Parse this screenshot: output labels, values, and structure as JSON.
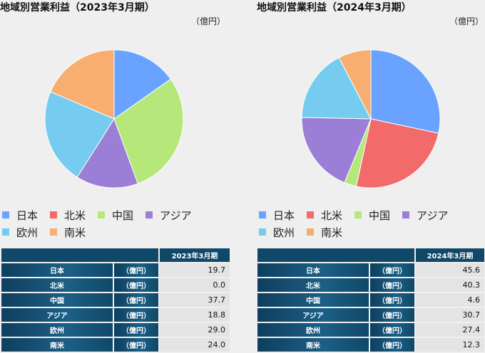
{
  "unit_label": "（億円）",
  "colors": {
    "japan": "#6aa3ff",
    "north_america": "#f26a6a",
    "china": "#b6e77a",
    "asia": "#9b7fd6",
    "europe": "#75ccf0",
    "south_america": "#f7ae70"
  },
  "table_unit": "（億円）",
  "chart_data": [
    {
      "type": "pie",
      "title": "地域別営業利益（2023年3月期）",
      "categories": [
        "日本",
        "北米",
        "中国",
        "アジア",
        "欧州",
        "南米"
      ],
      "values": [
        19.7,
        0.0,
        37.7,
        18.8,
        29.0,
        24.0
      ],
      "unit": "（億円）",
      "legend": "bottom",
      "table_header": "2023年3月期",
      "value_labels": [
        "19.7",
        "0.0",
        "37.7",
        "18.8",
        "29.0",
        "24.0"
      ]
    },
    {
      "type": "pie",
      "title": "地域別営業利益（2024年3月期）",
      "categories": [
        "日本",
        "北米",
        "中国",
        "アジア",
        "欧州",
        "南米"
      ],
      "values": [
        45.6,
        40.3,
        4.6,
        30.7,
        27.4,
        12.3
      ],
      "unit": "（億円）",
      "legend": "bottom",
      "table_header": "2024年3月期",
      "value_labels": [
        "45.6",
        "40.3",
        "4.6",
        "30.7",
        "27.4",
        "12.3"
      ]
    }
  ]
}
